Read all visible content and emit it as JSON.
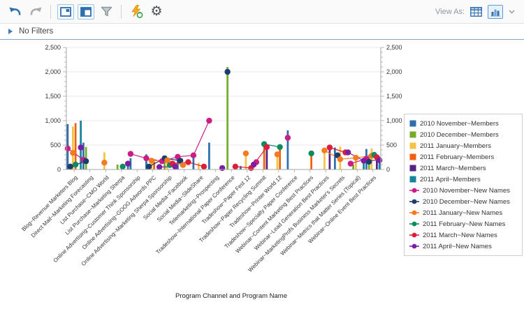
{
  "toolbar": {
    "icons": [
      {
        "name": "undo-icon"
      },
      {
        "name": "redo-icon"
      },
      {
        "name": "panel-preview-icon"
      },
      {
        "name": "panel-layout-icon"
      },
      {
        "name": "filter-funnel-icon"
      },
      {
        "name": "run-refresh-icon"
      },
      {
        "name": "settings-gear-icon"
      }
    ],
    "gear_glyph": "⚙",
    "view_as_label": "View As:",
    "view_options": [
      {
        "name": "table-view-icon",
        "selected": false
      },
      {
        "name": "chart-view-icon",
        "selected": true
      },
      {
        "name": "view-dropdown-chevron-icon",
        "selected": false
      }
    ]
  },
  "filters_bar": {
    "label": "No Filters"
  },
  "chart_data": {
    "type": "bar",
    "subtype": "grouped bars with line+marker overlay, dual y-axis",
    "title": "",
    "xlabel": "Program Channel and Program Name",
    "ylabel": "",
    "ylim": [
      0,
      2500
    ],
    "ytick_interval": 500,
    "yticks": [
      "0",
      "500",
      "1,000",
      "1,500",
      "2,000",
      "2,500"
    ],
    "dual_axis": true,
    "grid": true,
    "legend_position": "right",
    "categories": [
      "Blog~Revenue Marketers Blog",
      "Direct Mail~Marketing Forecasting",
      "List Purchase~CMO World",
      "List Purchase~Marketing Sherpa",
      "Online Advertising~Customer Think Sponsorship",
      "Online Advertising~GOOG Adwords PPC",
      "Online Advertising~Marketing Sherpa Sponsorship",
      "Social Media~Facebook",
      "Social Media~SlideShare",
      "Telemarketing~Prospecting",
      "Tradeshow~International Paper Conference",
      "Tradeshow~Paper Fest 12",
      "Tradeshow~Paper Recycling Summit",
      "Tradeshow~Printer World 12",
      "Tradeshow~Specialty Paper Conference",
      "Webinar~Content Marketing Best Practices",
      "Webinar~Lead Generation Best Practices",
      "Webinar~MarketingProfs Business Marketer's Secrets",
      "Webinar~Metrics that Matter Series (Topical)",
      "Webinar~Online Event Best Practices"
    ],
    "series": [
      {
        "name": "2010 November~Members",
        "type": "bar",
        "color": "#2e6fae",
        "values": [
          930,
          550,
          null,
          null,
          230,
          310,
          null,
          230,
          310,
          550,
          null,
          70,
          null,
          null,
          800,
          null,
          null,
          450,
          null,
          420
        ]
      },
      {
        "name": "2010 December~Members",
        "type": "bar",
        "color": "#76ac29",
        "values": [
          null,
          460,
          null,
          100,
          null,
          null,
          170,
          null,
          null,
          null,
          2100,
          null,
          null,
          null,
          null,
          null,
          null,
          null,
          100,
          300
        ]
      },
      {
        "name": "2011 January~Members",
        "type": "bar",
        "color": "#f6c445",
        "values": [
          880,
          null,
          350,
          null,
          null,
          150,
          160,
          null,
          140,
          null,
          null,
          300,
          null,
          290,
          null,
          null,
          370,
          470,
          220,
          430
        ]
      },
      {
        "name": "2011 February~Members",
        "type": "bar",
        "color": "#f2600d",
        "values": [
          950,
          null,
          null,
          null,
          null,
          160,
          null,
          null,
          null,
          null,
          null,
          null,
          480,
          440,
          null,
          310,
          null,
          null,
          null,
          null
        ]
      },
      {
        "name": "2011 March~Members",
        "type": "bar",
        "color": "#532486",
        "values": [
          null,
          null,
          null,
          null,
          null,
          null,
          null,
          null,
          null,
          null,
          null,
          null,
          430,
          null,
          null,
          null,
          430,
          null,
          null,
          180
        ]
      },
      {
        "name": "2011 April~Members",
        "type": "bar",
        "color": "#16849c",
        "values": [
          1000,
          null,
          null,
          90,
          null,
          null,
          60,
          null,
          null,
          null,
          null,
          null,
          null,
          null,
          null,
          null,
          null,
          null,
          150,
          260
        ]
      },
      {
        "name": "2010 November~New Names",
        "type": "line",
        "color": "#cc1c86",
        "values": [
          430,
          200,
          null,
          null,
          320,
          230,
          170,
          260,
          290,
          1000,
          null,
          null,
          150,
          null,
          650,
          null,
          null,
          null,
          120,
          220
        ]
      },
      {
        "name": "2010 December~New Names",
        "type": "line",
        "color": "#1a3c6e",
        "values": [
          60,
          170,
          null,
          null,
          null,
          60,
          230,
          180,
          null,
          null,
          2000,
          null,
          null,
          null,
          null,
          null,
          null,
          290,
          null,
          160
        ]
      },
      {
        "name": "2011 January~New Names",
        "type": "line",
        "color": "#f57a20",
        "values": [
          340,
          null,
          140,
          null,
          null,
          180,
          190,
          90,
          null,
          null,
          null,
          330,
          null,
          310,
          null,
          null,
          390,
          210,
          240,
          280
        ]
      },
      {
        "name": "2011 February~New Names",
        "type": "line",
        "color": "#0e8a62",
        "values": [
          100,
          null,
          null,
          60,
          null,
          null,
          90,
          null,
          null,
          null,
          null,
          null,
          520,
          460,
          null,
          330,
          null,
          null,
          null,
          300
        ]
      },
      {
        "name": "2011 March~New Names",
        "type": "line",
        "color": "#dc1e3c",
        "values": [
          null,
          null,
          null,
          null,
          null,
          null,
          120,
          150,
          60,
          null,
          60,
          30,
          460,
          null,
          null,
          null,
          450,
          350,
          null,
          250
        ]
      },
      {
        "name": "2011 April~New Names",
        "type": "line",
        "color": "#7b1fa2",
        "values": [
          450,
          null,
          null,
          120,
          null,
          50,
          60,
          null,
          null,
          30,
          null,
          100,
          null,
          null,
          null,
          null,
          null,
          350,
          180,
          190
        ]
      }
    ]
  }
}
